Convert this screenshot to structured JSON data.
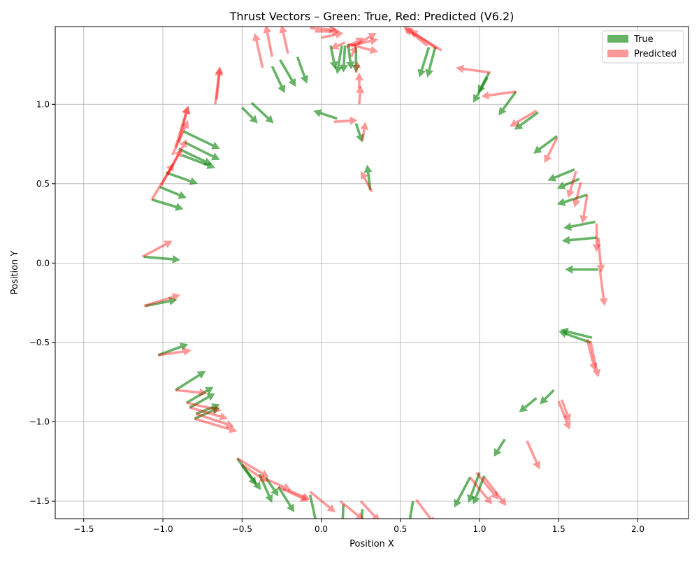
{
  "chart_data": {
    "type": "quiver",
    "title": "Thrust Vectors – Green: True, Red: Predicted (V6.2)",
    "xlabel": "Position X",
    "ylabel": "Position Y",
    "xlim": [
      -1.68,
      2.32
    ],
    "ylim": [
      -1.61,
      1.49
    ],
    "xticks": [
      -1.5,
      -1.0,
      -0.5,
      0.0,
      0.5,
      1.0,
      1.5,
      2.0
    ],
    "xtick_labels": [
      "−1.5",
      "−1.0",
      "−0.5",
      "0.0",
      "0.5",
      "1.0",
      "1.5",
      "2.0"
    ],
    "yticks": [
      -1.5,
      -1.0,
      -0.5,
      0.0,
      0.5,
      1.0
    ],
    "ytick_labels": [
      "−1.5",
      "−1.0",
      "−0.5",
      "0.0",
      "0.5",
      "1.0"
    ],
    "grid": true,
    "legend_position": "top-right",
    "series": [
      {
        "name": "True",
        "color": "#008000",
        "vectors": [
          [
            0.31,
            0.46,
            -0.02,
            0.16
          ],
          [
            0.22,
            0.88,
            0.04,
            -0.12
          ],
          [
            0.1,
            0.91,
            -0.15,
            0.05
          ],
          [
            0.13,
            1.37,
            -0.03,
            -0.18
          ],
          [
            0.15,
            1.37,
            -0.01,
            -0.17
          ],
          [
            0.17,
            1.38,
            0.02,
            -0.16
          ],
          [
            0.22,
            1.36,
            0.0,
            -0.16
          ],
          [
            0.06,
            1.37,
            0.03,
            -0.15
          ],
          [
            -0.44,
            1.01,
            0.14,
            -0.13
          ],
          [
            -0.5,
            0.98,
            0.1,
            -0.1
          ],
          [
            -0.31,
            1.24,
            0.08,
            -0.17
          ],
          [
            -0.26,
            1.28,
            0.1,
            -0.17
          ],
          [
            -0.15,
            1.3,
            0.06,
            -0.17
          ],
          [
            -0.87,
            0.83,
            0.23,
            -0.11
          ],
          [
            -0.86,
            0.76,
            0.22,
            -0.11
          ],
          [
            -0.9,
            0.72,
            0.21,
            -0.1
          ],
          [
            -0.88,
            0.68,
            0.21,
            -0.08
          ],
          [
            -0.98,
            0.57,
            0.2,
            -0.07
          ],
          [
            -1.02,
            0.48,
            0.17,
            -0.07
          ],
          [
            -1.07,
            0.4,
            0.2,
            -0.06
          ],
          [
            -1.12,
            0.04,
            0.23,
            -0.02
          ],
          [
            -1.11,
            -0.27,
            0.2,
            0.04
          ],
          [
            -1.03,
            -0.58,
            0.19,
            0.07
          ],
          [
            -0.92,
            -0.8,
            0.19,
            0.12
          ],
          [
            -0.85,
            -0.88,
            0.17,
            0.1
          ],
          [
            -0.83,
            -0.91,
            0.16,
            0.09
          ],
          [
            -0.79,
            -0.95,
            0.15,
            0.06
          ],
          [
            -0.8,
            -0.98,
            0.16,
            0.07
          ],
          [
            -0.53,
            -1.23,
            0.12,
            -0.17
          ],
          [
            -0.5,
            -1.27,
            0.12,
            -0.16
          ],
          [
            -0.39,
            -1.33,
            0.08,
            -0.18
          ],
          [
            -0.35,
            -1.35,
            0.08,
            -0.12
          ],
          [
            -0.27,
            -1.41,
            0.1,
            -0.16
          ],
          [
            -0.07,
            -1.46,
            0.05,
            -0.23
          ],
          [
            0.14,
            -1.52,
            -0.01,
            -0.25
          ],
          [
            0.26,
            -1.55,
            -0.01,
            -0.25
          ],
          [
            0.58,
            -1.5,
            -0.04,
            -0.23
          ],
          [
            0.94,
            -1.35,
            -0.1,
            -0.19
          ],
          [
            1.0,
            -1.32,
            -0.07,
            -0.19
          ],
          [
            1.03,
            -1.34,
            -0.07,
            -0.18
          ],
          [
            1.16,
            -1.11,
            -0.07,
            -0.11
          ],
          [
            1.36,
            -0.85,
            -0.11,
            -0.09
          ],
          [
            1.47,
            -0.8,
            -0.09,
            -0.09
          ],
          [
            1.7,
            -0.5,
            -0.2,
            0.07
          ],
          [
            1.71,
            -0.47,
            -0.2,
            0.05
          ],
          [
            1.75,
            -0.04,
            -0.21,
            0.0
          ],
          [
            1.74,
            0.16,
            -0.22,
            -0.02
          ],
          [
            1.73,
            0.26,
            -0.2,
            -0.04
          ],
          [
            1.68,
            0.43,
            -0.19,
            -0.06
          ],
          [
            1.63,
            0.53,
            -0.14,
            -0.06
          ],
          [
            1.6,
            0.59,
            -0.17,
            -0.07
          ],
          [
            1.49,
            0.8,
            -0.15,
            -0.11
          ],
          [
            1.37,
            0.95,
            -0.15,
            -0.11
          ],
          [
            1.23,
            1.08,
            -0.11,
            -0.15
          ],
          [
            1.06,
            1.2,
            -0.07,
            -0.13
          ],
          [
            1.05,
            1.17,
            -0.09,
            -0.16
          ],
          [
            0.72,
            1.36,
            -0.05,
            -0.19
          ],
          [
            0.68,
            1.36,
            -0.06,
            -0.19
          ]
        ]
      },
      {
        "name": "Predicted",
        "color": "#ff0000",
        "vectors": [
          [
            0.32,
            0.45,
            -0.07,
            0.13
          ],
          [
            0.26,
            0.77,
            0.02,
            0.12
          ],
          [
            0.08,
            0.89,
            0.15,
            0.01
          ],
          [
            0.24,
            1.0,
            0.01,
            0.12
          ],
          [
            0.24,
            1.1,
            0.0,
            0.1
          ],
          [
            0.22,
            1.2,
            0.01,
            0.07
          ],
          [
            0.19,
            1.3,
            0.03,
            0.07
          ],
          [
            0.15,
            1.39,
            -0.09,
            -0.04
          ],
          [
            0.0,
            1.42,
            0.14,
            0.03
          ],
          [
            -0.04,
            1.46,
            0.16,
            0.0
          ],
          [
            -0.07,
            1.48,
            0.17,
            -0.01
          ],
          [
            0.17,
            1.38,
            0.19,
            -0.05
          ],
          [
            0.19,
            1.37,
            0.17,
            0.04
          ],
          [
            0.21,
            1.37,
            0.14,
            0.08
          ],
          [
            0.16,
            1.36,
            0.11,
            0.06
          ],
          [
            -0.67,
            1.0,
            0.03,
            0.23
          ],
          [
            -0.66,
            1.03,
            0.02,
            0.21
          ],
          [
            -0.37,
            1.23,
            -0.05,
            0.22
          ],
          [
            -0.31,
            1.3,
            -0.04,
            0.2
          ],
          [
            -0.21,
            1.32,
            -0.04,
            0.18
          ],
          [
            -0.92,
            0.73,
            0.08,
            0.26
          ],
          [
            -0.9,
            0.76,
            0.06,
            0.23
          ],
          [
            -0.94,
            0.68,
            0.1,
            0.22
          ],
          [
            -0.97,
            0.56,
            0.12,
            0.22
          ],
          [
            -1.01,
            0.49,
            0.13,
            0.23
          ],
          [
            -1.07,
            0.4,
            0.14,
            0.23
          ],
          [
            -1.13,
            0.04,
            0.19,
            0.1
          ],
          [
            -1.12,
            -0.27,
            0.23,
            0.07
          ],
          [
            -1.03,
            -0.58,
            0.21,
            0.03
          ],
          [
            -0.92,
            -0.8,
            0.2,
            -0.02
          ],
          [
            -0.85,
            -0.88,
            0.22,
            -0.05
          ],
          [
            -0.83,
            -0.91,
            0.24,
            -0.07
          ],
          [
            -0.79,
            -0.95,
            0.24,
            -0.08
          ],
          [
            -0.8,
            -0.98,
            0.27,
            -0.08
          ],
          [
            -0.53,
            -1.23,
            0.2,
            -0.12
          ],
          [
            -0.5,
            -1.27,
            0.16,
            -0.11
          ],
          [
            -0.35,
            -1.36,
            0.16,
            -0.07
          ],
          [
            -0.27,
            -1.41,
            0.19,
            -0.09
          ],
          [
            -0.21,
            -1.43,
            0.14,
            -0.06
          ],
          [
            -0.07,
            -1.44,
            0.16,
            -0.13
          ],
          [
            0.12,
            -1.5,
            0.15,
            -0.12
          ],
          [
            0.25,
            -1.5,
            0.12,
            -0.13
          ],
          [
            0.6,
            -1.49,
            0.12,
            -0.16
          ],
          [
            0.94,
            -1.35,
            0.14,
            -0.17
          ],
          [
            0.98,
            -1.32,
            0.14,
            -0.17
          ],
          [
            1.03,
            -1.35,
            0.14,
            -0.18
          ],
          [
            1.3,
            -1.12,
            0.08,
            -0.18
          ],
          [
            1.5,
            -0.87,
            0.07,
            -0.18
          ],
          [
            1.52,
            -0.86,
            0.05,
            -0.14
          ],
          [
            1.7,
            -0.49,
            0.05,
            -0.23
          ],
          [
            1.68,
            -0.48,
            0.05,
            -0.2
          ],
          [
            1.76,
            -0.04,
            0.03,
            -0.23
          ],
          [
            1.75,
            0.16,
            0.02,
            -0.22
          ],
          [
            1.74,
            0.25,
            0.0,
            -0.18
          ],
          [
            1.68,
            0.43,
            -0.03,
            -0.18
          ],
          [
            1.64,
            0.51,
            -0.04,
            -0.16
          ],
          [
            1.61,
            0.58,
            -0.05,
            -0.17
          ],
          [
            1.49,
            0.79,
            -0.08,
            -0.16
          ],
          [
            1.36,
            0.96,
            -0.17,
            -0.1
          ],
          [
            1.23,
            1.08,
            -0.22,
            -0.03
          ],
          [
            1.07,
            1.2,
            -0.22,
            0.03
          ],
          [
            0.73,
            1.35,
            -0.17,
            0.12
          ],
          [
            0.67,
            1.37,
            -0.15,
            0.12
          ],
          [
            0.76,
            1.34,
            -0.23,
            0.14
          ]
        ]
      }
    ]
  }
}
